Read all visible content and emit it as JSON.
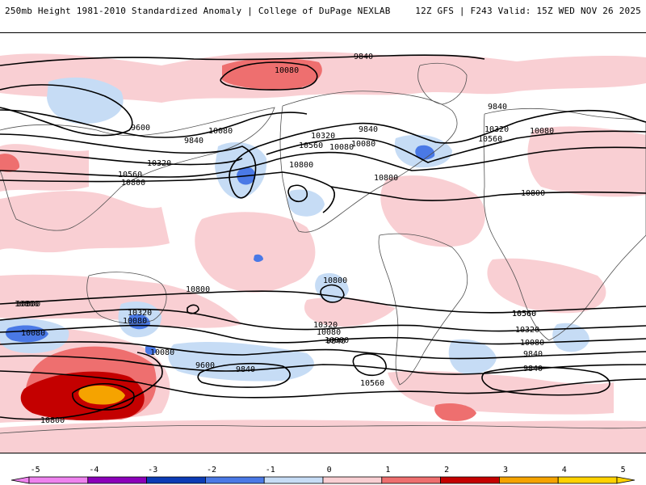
{
  "header": {
    "title": "250mb Height 1981-2010 Standardized Anomaly | College of DuPage NEXLAB",
    "run_info": "12Z GFS | F243 Valid: 15Z WED NOV 26 2025"
  },
  "colors": {
    "neg5": "#ee82ee",
    "neg4": "#8b00b9",
    "neg3": "#0b3bb5",
    "neg2": "#4a79e6",
    "neg1": "#c6dcf5",
    "neutral": "#ffffff",
    "pos1": "#f9cfd3",
    "pos2": "#ee6f6f",
    "pos3": "#c40000",
    "pos4": "#f5a300",
    "pos5": "#ffd200",
    "contour": "#000000",
    "coast": "#505050"
  },
  "colorbar": {
    "ticks": [
      "-5",
      "-4",
      "-3",
      "-2",
      "-1",
      "0",
      "1",
      "2",
      "3",
      "4",
      "5"
    ]
  },
  "contour_labels": [
    {
      "id": "c1",
      "text": "9840"
    },
    {
      "id": "c2",
      "text": "10080"
    },
    {
      "id": "c3",
      "text": "9600"
    },
    {
      "id": "c4",
      "text": "9840"
    },
    {
      "id": "c5",
      "text": "10080"
    },
    {
      "id": "c6",
      "text": "10320"
    },
    {
      "id": "c7",
      "text": "10560"
    },
    {
      "id": "c8",
      "text": "10800"
    },
    {
      "id": "c9",
      "text": "10320"
    },
    {
      "id": "c10",
      "text": "10560"
    },
    {
      "id": "c11",
      "text": "10800"
    },
    {
      "id": "c12",
      "text": "10080"
    },
    {
      "id": "c13",
      "text": "9840"
    },
    {
      "id": "c14",
      "text": "10080"
    },
    {
      "id": "c15",
      "text": "10800"
    },
    {
      "id": "c16",
      "text": "9840"
    },
    {
      "id": "c17",
      "text": "10320"
    },
    {
      "id": "c18",
      "text": "10080"
    },
    {
      "id": "c19",
      "text": "10560"
    },
    {
      "id": "c20",
      "text": "10800"
    },
    {
      "id": "c21",
      "text": "10800"
    },
    {
      "id": "c22",
      "text": "10800"
    },
    {
      "id": "c23",
      "text": "10800"
    },
    {
      "id": "c24",
      "text": "10560"
    },
    {
      "id": "c25",
      "text": "10320"
    },
    {
      "id": "c26",
      "text": "10080"
    },
    {
      "id": "c27",
      "text": "10080"
    },
    {
      "id": "c28",
      "text": "10080"
    },
    {
      "id": "c29",
      "text": "9840"
    },
    {
      "id": "c30",
      "text": "9600"
    },
    {
      "id": "c31",
      "text": "9840"
    },
    {
      "id": "c32",
      "text": "10560"
    },
    {
      "id": "c33",
      "text": "10320"
    },
    {
      "id": "c34",
      "text": "10080"
    },
    {
      "id": "c35",
      "text": "10800"
    },
    {
      "id": "c36",
      "text": "10560"
    },
    {
      "id": "c37",
      "text": "10320"
    },
    {
      "id": "c38",
      "text": "10080"
    },
    {
      "id": "c39",
      "text": "9840"
    },
    {
      "id": "c40",
      "text": "9840"
    },
    {
      "id": "c41",
      "text": "10800"
    },
    {
      "id": "c42",
      "text": "10800"
    }
  ]
}
